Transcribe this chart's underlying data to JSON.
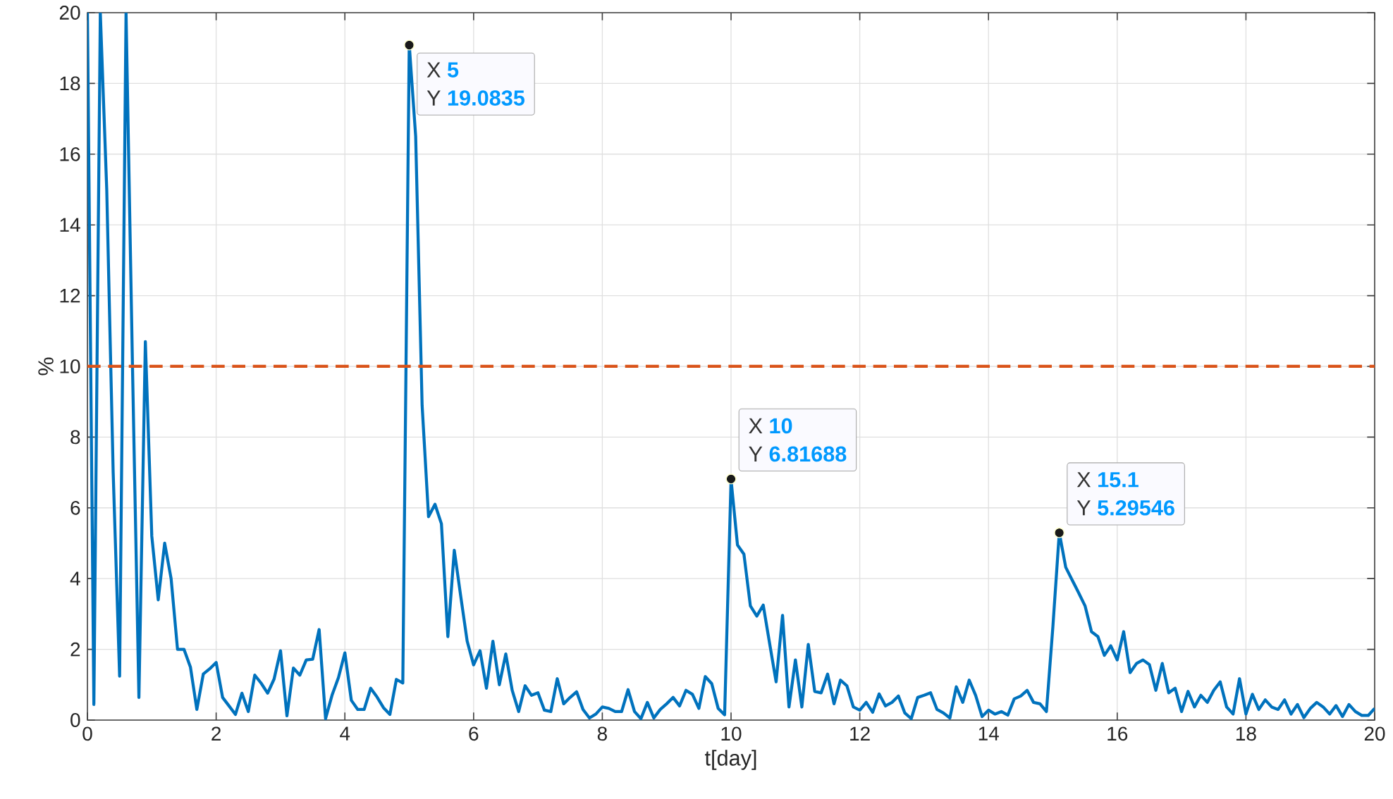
{
  "chart_data": {
    "type": "line",
    "xlabel": "t[day]",
    "ylabel": "%",
    "xlim": [
      0,
      20
    ],
    "ylim": [
      0,
      20
    ],
    "xticks": [
      0,
      2,
      4,
      6,
      8,
      10,
      12,
      14,
      16,
      18,
      20
    ],
    "yticks": [
      0,
      2,
      4,
      6,
      8,
      10,
      12,
      14,
      16,
      18,
      20
    ],
    "grid": true,
    "line_style": "solid",
    "marker": "none",
    "x": [
      0,
      0.1,
      0.2,
      0.3,
      0.4,
      0.5,
      0.6,
      0.7,
      0.8,
      0.9,
      1,
      1.1,
      1.2,
      1.3,
      1.4,
      1.5,
      1.6,
      1.7,
      1.8,
      1.9,
      2,
      2.1,
      2.2,
      2.3,
      2.4,
      2.5,
      2.6,
      2.7,
      2.8,
      2.9,
      3,
      3.1,
      3.2,
      3.3,
      3.4,
      3.5,
      3.6,
      3.7,
      3.8,
      3.9,
      4,
      4.1,
      4.2,
      4.3,
      4.4,
      4.5,
      4.6,
      4.7,
      4.8,
      4.9,
      5,
      5.1,
      5.2,
      5.3,
      5.4,
      5.5,
      5.6,
      5.7,
      5.8,
      5.9,
      6,
      6.1,
      6.2,
      6.3,
      6.4,
      6.5,
      6.6,
      6.7,
      6.8,
      6.9,
      7,
      7.1,
      7.2,
      7.3,
      7.4,
      7.5,
      7.6,
      7.7,
      7.8,
      7.9,
      8,
      8.1,
      8.2,
      8.3,
      8.4,
      8.5,
      8.6,
      8.7,
      8.8,
      8.9,
      9,
      9.1,
      9.2,
      9.3,
      9.4,
      9.5,
      9.6,
      9.7,
      9.8,
      9.9,
      10,
      10.1,
      10.2,
      10.3,
      10.4,
      10.5,
      10.6,
      10.7,
      10.8,
      10.9,
      11,
      11.1,
      11.2,
      11.3,
      11.4,
      11.5,
      11.6,
      11.7,
      11.8,
      11.9,
      12,
      12.1,
      12.2,
      12.3,
      12.4,
      12.5,
      12.6,
      12.7,
      12.8,
      12.9,
      13,
      13.1,
      13.2,
      13.3,
      13.4,
      13.5,
      13.6,
      13.7,
      13.8,
      13.9,
      14,
      14.1,
      14.2,
      14.3,
      14.4,
      14.5,
      14.6,
      14.7,
      14.8,
      14.9,
      15,
      15.1,
      15.2,
      15.3,
      15.4,
      15.5,
      15.6,
      15.7,
      15.8,
      15.9,
      16,
      16.1,
      16.2,
      16.3,
      16.4,
      16.5,
      16.6,
      16.7,
      16.8,
      16.9,
      17,
      17.1,
      17.2,
      17.3,
      17.4,
      17.5,
      17.6,
      17.7,
      17.8,
      17.9,
      18,
      18.1,
      18.2,
      18.3,
      18.4,
      18.5,
      18.6,
      18.7,
      18.8,
      18.9,
      19,
      19.1,
      19.2,
      19.3,
      19.4,
      19.5,
      19.6,
      19.7,
      19.8,
      19.9,
      20
    ],
    "series": [
      {
        "color": "#0072bd",
        "values": [
          20,
          0.44,
          20,
          15,
          7,
          1.24,
          20,
          10,
          0.64,
          10.7,
          5.2,
          3.4,
          5.0,
          4.0,
          2.0,
          2.0,
          1.5,
          0.3,
          1.3,
          1.45,
          1.63,
          0.64,
          0.4,
          0.16,
          0.76,
          0.24,
          1.27,
          1.04,
          0.76,
          1.16,
          1.96,
          0.12,
          1.47,
          1.27,
          1.7,
          1.72,
          2.56,
          0.04,
          0.7,
          1.2,
          1.9,
          0.56,
          0.3,
          0.3,
          0.9,
          0.65,
          0.35,
          0.16,
          1.15,
          1.05,
          19.1,
          16.5,
          8.9,
          5.75,
          6.1,
          5.55,
          2.36,
          4.8,
          3.5,
          2.23,
          1.56,
          1.96,
          0.9,
          2.23,
          1.0,
          1.87,
          0.84,
          0.24,
          0.97,
          0.7,
          0.77,
          0.28,
          0.24,
          1.17,
          0.46,
          0.64,
          0.8,
          0.3,
          0.06,
          0.17,
          0.37,
          0.33,
          0.24,
          0.24,
          0.86,
          0.24,
          0.04,
          0.5,
          0.06,
          0.3,
          0.46,
          0.64,
          0.4,
          0.84,
          0.73,
          0.33,
          1.23,
          1.03,
          0.33,
          0.15,
          6.8,
          4.95,
          4.69,
          3.23,
          2.94,
          3.25,
          2.16,
          1.08,
          2.96,
          0.37,
          1.7,
          0.37,
          2.14,
          0.81,
          0.77,
          1.3,
          0.46,
          1.13,
          0.97,
          0.37,
          0.28,
          0.5,
          0.22,
          0.74,
          0.4,
          0.5,
          0.68,
          0.2,
          0.04,
          0.64,
          0.7,
          0.77,
          0.3,
          0.2,
          0.06,
          0.94,
          0.5,
          1.13,
          0.7,
          0.1,
          0.28,
          0.17,
          0.24,
          0.14,
          0.6,
          0.68,
          0.84,
          0.5,
          0.46,
          0.24,
          2.63,
          5.3,
          4.32,
          3.96,
          3.6,
          3.23,
          2.5,
          2.36,
          1.83,
          2.1,
          1.7,
          2.5,
          1.34,
          1.6,
          1.7,
          1.57,
          0.84,
          1.6,
          0.77,
          0.9,
          0.24,
          0.81,
          0.37,
          0.7,
          0.5,
          0.84,
          1.08,
          0.37,
          0.17,
          1.17,
          0.17,
          0.73,
          0.3,
          0.57,
          0.37,
          0.3,
          0.57,
          0.17,
          0.44,
          0.07,
          0.33,
          0.5,
          0.37,
          0.17,
          0.41,
          0.1,
          0.44,
          0.24,
          0.13,
          0.13,
          0.33
        ]
      }
    ],
    "ref_lines": [
      {
        "axis": "y",
        "value": 10,
        "color": "#d95319",
        "line_style": "dashed"
      }
    ],
    "annotations": [
      {
        "text": "X",
        "x": 5,
        "y": 19.0835
      },
      "5",
      "Y",
      "19.0835",
      {
        "text": "X",
        "x": 10,
        "y": 6.81688
      },
      "10",
      "Y",
      "6.81688",
      {
        "text": "X",
        "x": 15.1,
        "y": 5.29546
      },
      "15.1",
      "Y",
      "5.29546"
    ]
  }
}
